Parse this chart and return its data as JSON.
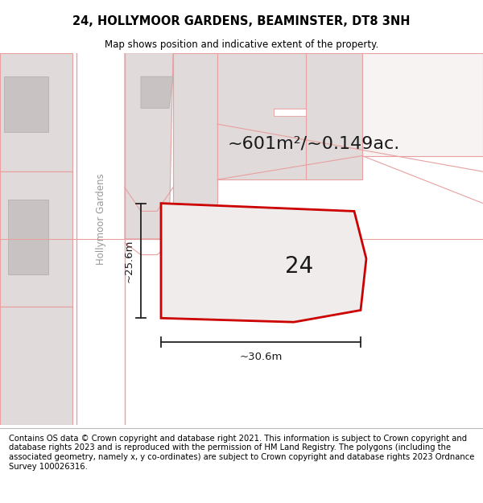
{
  "title": "24, HOLLYMOOR GARDENS, BEAMINSTER, DT8 3NH",
  "subtitle": "Map shows position and indicative extent of the property.",
  "area_label": "~601m²/~0.149ac.",
  "number_label": "24",
  "dim_width": "~30.6m",
  "dim_height": "~25.6m",
  "street_label": "Hollymoor Gardens",
  "footer_text": "Contains OS data © Crown copyright and database right 2021. This information is subject to Crown copyright and database rights 2023 and is reproduced with the permission of HM Land Registry. The polygons (including the associated geometry, namely x, y co-ordinates) are subject to Crown copyright and database rights 2023 Ordnance Survey 100026316.",
  "bg_color": "#f7f3f3",
  "road_color": "#ffffff",
  "building_color": "#e0dada",
  "pink_line_color": "#e8a0a0",
  "border_color": "#cc0000",
  "plot_fill": "#f0ecec",
  "building_fill": "#d8d2d2",
  "title_fontsize": 10.5,
  "subtitle_fontsize": 8.5,
  "area_fontsize": 16,
  "number_fontsize": 20,
  "dim_fontsize": 9.5,
  "street_fontsize": 8.5,
  "footer_fontsize": 7.2
}
